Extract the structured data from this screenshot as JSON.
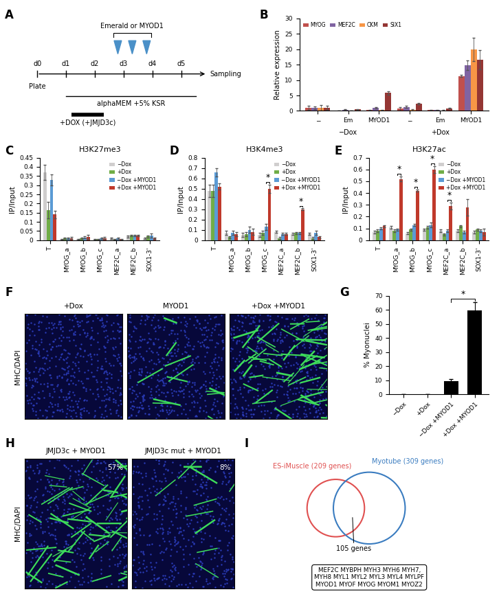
{
  "panel_labels": [
    "A",
    "B",
    "C",
    "D",
    "E",
    "F",
    "G",
    "H",
    "I"
  ],
  "timeline": {
    "days": [
      "d0",
      "d1",
      "d2",
      "d3",
      "d4",
      "d5"
    ],
    "start_label": "Plate",
    "end_label": "Sampling",
    "top_label": "Emerald or MYOD1",
    "medium_label": "alphaMEM +5% KSR",
    "dox_label": "+DOX (+JMJD3c)"
  },
  "chart_data": [
    {
      "type": "bar",
      "y_label": "Relative expression",
      "categories": [
        "−",
        "Em",
        "MYOD1",
        "−",
        "Em",
        "MYOD1"
      ],
      "group_labels": [
        "−Dox",
        "+Dox"
      ],
      "series": [
        {
          "name": "MYOG",
          "color": "#c0504d",
          "values": [
            1.0,
            0.1,
            0.3,
            0.7,
            0.3,
            11.3
          ],
          "errors": [
            0.6,
            0.05,
            0.1,
            0.5,
            0.1,
            0.3
          ]
        },
        {
          "name": "MEF2C",
          "color": "#8064a2",
          "values": [
            1.0,
            0.4,
            1.0,
            1.3,
            0.3,
            14.8
          ],
          "errors": [
            0.5,
            0.1,
            0.2,
            0.4,
            0.1,
            1.5
          ]
        },
        {
          "name": "CKM",
          "color": "#f79646",
          "values": [
            1.0,
            0.1,
            0.3,
            0.3,
            0.2,
            20.0
          ],
          "errors": [
            0.8,
            0.05,
            0.1,
            0.2,
            0.1,
            3.8
          ]
        },
        {
          "name": "SIX1",
          "color": "#943634",
          "values": [
            1.0,
            0.5,
            5.8,
            2.3,
            0.8,
            16.6
          ],
          "errors": [
            0.6,
            0.1,
            0.6,
            0.3,
            0.1,
            3.2
          ]
        }
      ],
      "ylim": [
        0,
        30
      ],
      "yticks": [
        0,
        5,
        10,
        15,
        20,
        25,
        30
      ],
      "legend": "upper left"
    },
    {
      "type": "bar",
      "title": "H3K27me3",
      "y_label": "IP/Input",
      "categories": [
        "T",
        "MYOG_a",
        "MYOG_b",
        "MYOG_c",
        "MEF2C_a",
        "MEF2C_b",
        "SOX1-3'"
      ],
      "series": [
        {
          "name": "−Dox",
          "color": "#d0cece",
          "values": [
            0.37,
            0.005,
            0.005,
            0.005,
            0.01,
            0.02,
            0.01
          ],
          "errors": [
            0.04,
            0.003,
            0.003,
            0.003,
            0.005,
            0.005,
            0.005
          ]
        },
        {
          "name": "+Dox",
          "color": "#70ad47",
          "values": [
            0.165,
            0.01,
            0.01,
            0.005,
            0.005,
            0.025,
            0.02
          ],
          "errors": [
            0.045,
            0.005,
            0.005,
            0.003,
            0.003,
            0.005,
            0.005
          ]
        },
        {
          "name": "−Dox +MYOD1",
          "color": "#5b9bd5",
          "values": [
            0.33,
            0.01,
            0.015,
            0.01,
            0.01,
            0.025,
            0.025
          ],
          "errors": [
            0.03,
            0.005,
            0.005,
            0.005,
            0.005,
            0.005,
            0.01
          ]
        },
        {
          "name": "+Dox +MYOD1",
          "color": "#c0392b",
          "values": [
            0.14,
            0.012,
            0.018,
            0.012,
            0.005,
            0.025,
            0.01
          ],
          "errors": [
            0.02,
            0.005,
            0.01,
            0.005,
            0.003,
            0.005,
            0.005
          ]
        }
      ],
      "ylim": [
        0,
        0.45
      ],
      "yticks": [
        0,
        0.05,
        0.1,
        0.15,
        0.2,
        0.25,
        0.3,
        0.35,
        0.4,
        0.45
      ],
      "legend": "upper right"
    },
    {
      "type": "bar",
      "title": "H3K4me3",
      "y_label": "IP/Input",
      "categories": [
        "T",
        "MYOG_a",
        "MYOG_b",
        "MYOG_c",
        "MEF2C_a",
        "MEF2C_b",
        "SOX1-3'"
      ],
      "series": [
        {
          "name": "−Dox",
          "color": "#d0cece",
          "values": [
            0.48,
            0.07,
            0.05,
            0.05,
            0.08,
            0.06,
            0.06
          ],
          "errors": [
            0.06,
            0.02,
            0.02,
            0.02,
            0.01,
            0.01,
            0.01
          ]
        },
        {
          "name": "+Dox",
          "color": "#70ad47",
          "values": [
            0.48,
            0.03,
            0.06,
            0.07,
            0.02,
            0.07,
            0.02
          ],
          "errors": [
            0.06,
            0.01,
            0.02,
            0.02,
            0.01,
            0.01,
            0.01
          ]
        },
        {
          "name": "−Dox +MYOD1",
          "color": "#5b9bd5",
          "values": [
            0.66,
            0.07,
            0.1,
            0.13,
            0.06,
            0.07,
            0.07
          ],
          "errors": [
            0.04,
            0.02,
            0.03,
            0.03,
            0.01,
            0.01,
            0.02
          ]
        },
        {
          "name": "+Dox +MYOD1",
          "color": "#c0392b",
          "values": [
            0.52,
            0.06,
            0.08,
            0.5,
            0.06,
            0.3,
            0.03
          ],
          "errors": [
            0.03,
            0.02,
            0.03,
            0.04,
            0.01,
            0.01,
            0.01
          ]
        }
      ],
      "ylim": [
        0,
        0.8
      ],
      "yticks": [
        0,
        0.1,
        0.2,
        0.3,
        0.4,
        0.5,
        0.6,
        0.7,
        0.8
      ],
      "legend": "upper right",
      "annotations": [
        {
          "category": "MYOG_c",
          "text": "*"
        },
        {
          "category": "MEF2C_b",
          "text": "*"
        }
      ]
    },
    {
      "type": "bar",
      "title": "H3K27ac",
      "y_label": "IP/Input",
      "categories": [
        "T",
        "MYOG_a",
        "MYOG_b",
        "MYOG_c",
        "MEF2C_a",
        "MEF2C_b",
        "SOX1-3'"
      ],
      "series": [
        {
          "name": "−Dox",
          "color": "#d0cece",
          "values": [
            0.07,
            0.11,
            0.06,
            0.09,
            0.08,
            0.08,
            0.07
          ],
          "errors": [
            0.01,
            0.01,
            0.01,
            0.01,
            0.01,
            0.01,
            0.01
          ]
        },
        {
          "name": "+Dox",
          "color": "#70ad47",
          "values": [
            0.08,
            0.08,
            0.09,
            0.11,
            0.05,
            0.12,
            0.09
          ],
          "errors": [
            0.01,
            0.01,
            0.01,
            0.01,
            0.01,
            0.01,
            0.01
          ]
        },
        {
          "name": "−Dox +MYOD1",
          "color": "#5b9bd5",
          "values": [
            0.1,
            0.09,
            0.13,
            0.13,
            0.08,
            0.07,
            0.08
          ],
          "errors": [
            0.01,
            0.01,
            0.01,
            0.02,
            0.01,
            0.01,
            0.01
          ]
        },
        {
          "name": "+Dox +MYOD1",
          "color": "#c0392b",
          "values": [
            0.12,
            0.52,
            0.42,
            0.6,
            0.29,
            0.28,
            0.07
          ],
          "errors": [
            0.01,
            0.02,
            0.01,
            0.03,
            0.03,
            0.07,
            0.03
          ]
        }
      ],
      "ylim": [
        0,
        0.7
      ],
      "yticks": [
        0,
        0.1,
        0.2,
        0.3,
        0.4,
        0.5,
        0.6,
        0.7
      ],
      "legend": "upper right",
      "annotations": [
        {
          "category": "MYOG_a",
          "text": "*"
        },
        {
          "category": "MYOG_b",
          "text": "*"
        },
        {
          "category": "MYOG_c",
          "text": "*"
        },
        {
          "category": "MEF2C_a",
          "text": "*"
        }
      ]
    },
    {
      "type": "bar",
      "y_label": "% Myonuclei",
      "categories": [
        "−Dox",
        "+Dox",
        "−Dox +MYOD1",
        "+Dox +MYOD1"
      ],
      "values": [
        0,
        0,
        9.5,
        59.5
      ],
      "errors": [
        0,
        0,
        1.5,
        6.0
      ],
      "color": "#000000",
      "ylim": [
        0,
        70
      ],
      "yticks": [
        0,
        10,
        20,
        30,
        40,
        50,
        60,
        70
      ],
      "annotations": [
        {
          "from": "−Dox +MYOD1",
          "to": "+Dox +MYOD1",
          "text": "*"
        }
      ]
    }
  ],
  "images": [
    {
      "titles": [
        "+Dox",
        "MYOD1",
        "+Dox +MYOD1"
      ],
      "y_label": "MHC/DAPI"
    },
    {
      "titles": [
        "JMJD3c + MYOD1",
        "JMJD3c mut + MYOD1"
      ],
      "y_label": "MHC/DAPI",
      "percent_labels": [
        {
          "value": 57,
          "label": "57%"
        },
        {
          "value": 8,
          "label": "8%"
        }
      ]
    }
  ],
  "venn": {
    "left_label": "ES-iMuscle (209 genes)",
    "right_label": "Myotube (309 genes)",
    "overlap_label": "105 genes",
    "left_color": "#e05050",
    "right_color": "#3a7cc0",
    "gene_lines": [
      "MEF2C MYBPH MYH3 MYH6 MYH7,",
      "MYH8 MYL1 MYL2 MYL3 MYL4 MYLPF",
      "MYOD1 MYOF MYOG MYOM1 MYOZ2"
    ]
  }
}
